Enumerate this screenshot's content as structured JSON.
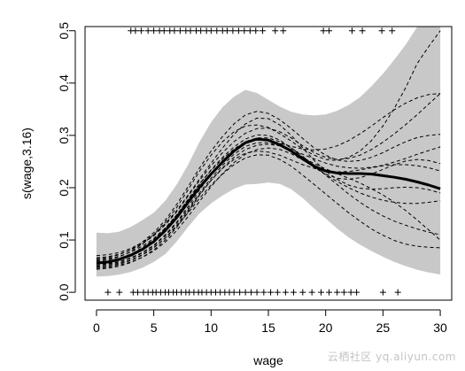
{
  "watermark": "云栖社区 yq.aliyun.com",
  "chart_data": {
    "type": "line",
    "title": "",
    "xlabel": "wage",
    "ylabel": "s(wage,3.16)",
    "xlim": [
      -1,
      31
    ],
    "ylim": [
      -0.015,
      0.508
    ],
    "xticks": [
      0,
      5,
      10,
      15,
      20,
      25,
      30
    ],
    "yticks": [
      0.0,
      0.1,
      0.2,
      0.3,
      0.4,
      0.5
    ],
    "ytick_labels": [
      "0.0",
      "0.1",
      "0.2",
      "0.3",
      "0.4",
      "0.5"
    ],
    "grid": false,
    "legend": "none",
    "colors": {
      "band": "#c8c8c8",
      "fit": "#000000",
      "samples": "#000000",
      "rug": "#000000"
    },
    "fit": {
      "x": [
        0,
        1,
        2,
        3,
        4,
        5,
        6,
        7,
        8,
        9,
        10,
        11,
        12,
        13,
        14,
        15,
        16,
        17,
        18,
        19,
        20,
        21,
        22,
        23,
        24,
        25,
        26,
        27,
        28,
        29,
        30
      ],
      "y": [
        0.056,
        0.058,
        0.063,
        0.071,
        0.082,
        0.097,
        0.118,
        0.143,
        0.172,
        0.201,
        0.226,
        0.249,
        0.27,
        0.286,
        0.293,
        0.291,
        0.282,
        0.27,
        0.255,
        0.241,
        0.232,
        0.228,
        0.227,
        0.227,
        0.226,
        0.223,
        0.22,
        0.216,
        0.211,
        0.205,
        0.198
      ]
    },
    "band": {
      "upper": [
        0.114,
        0.113,
        0.116,
        0.125,
        0.138,
        0.152,
        0.175,
        0.206,
        0.244,
        0.288,
        0.325,
        0.354,
        0.374,
        0.387,
        0.381,
        0.368,
        0.355,
        0.345,
        0.34,
        0.338,
        0.34,
        0.347,
        0.358,
        0.373,
        0.394,
        0.418,
        0.445,
        0.474,
        0.508,
        0.508,
        0.508
      ],
      "lower": [
        0.03,
        0.031,
        0.034,
        0.039,
        0.047,
        0.058,
        0.073,
        0.097,
        0.125,
        0.151,
        0.17,
        0.185,
        0.198,
        0.206,
        0.207,
        0.21,
        0.207,
        0.197,
        0.18,
        0.16,
        0.141,
        0.122,
        0.105,
        0.091,
        0.079,
        0.068,
        0.058,
        0.05,
        0.043,
        0.038,
        0.034
      ]
    },
    "sample_curves": [
      [
        0.06,
        0.062,
        0.068,
        0.078,
        0.092,
        0.11,
        0.134,
        0.162,
        0.196,
        0.232,
        0.262,
        0.288,
        0.307,
        0.318,
        0.32,
        0.315,
        0.303,
        0.289,
        0.274,
        0.262,
        0.254,
        0.252,
        0.258,
        0.27,
        0.29,
        0.318,
        0.352,
        0.392,
        0.438,
        0.47,
        0.5
      ],
      [
        0.05,
        0.052,
        0.056,
        0.062,
        0.072,
        0.086,
        0.104,
        0.126,
        0.152,
        0.18,
        0.205,
        0.226,
        0.244,
        0.257,
        0.263,
        0.262,
        0.254,
        0.241,
        0.224,
        0.206,
        0.188,
        0.17,
        0.152,
        0.136,
        0.121,
        0.109,
        0.099,
        0.092,
        0.088,
        0.086,
        0.085
      ],
      [
        0.064,
        0.066,
        0.072,
        0.082,
        0.096,
        0.114,
        0.138,
        0.168,
        0.202,
        0.238,
        0.27,
        0.298,
        0.322,
        0.339,
        0.346,
        0.342,
        0.33,
        0.313,
        0.294,
        0.276,
        0.262,
        0.253,
        0.25,
        0.252,
        0.258,
        0.267,
        0.278,
        0.288,
        0.296,
        0.3,
        0.302
      ],
      [
        0.044,
        0.046,
        0.05,
        0.057,
        0.067,
        0.081,
        0.1,
        0.124,
        0.154,
        0.186,
        0.214,
        0.237,
        0.254,
        0.266,
        0.27,
        0.268,
        0.262,
        0.253,
        0.244,
        0.237,
        0.232,
        0.23,
        0.231,
        0.234,
        0.238,
        0.242,
        0.244,
        0.244,
        0.242,
        0.238,
        0.232
      ],
      [
        0.07,
        0.072,
        0.076,
        0.084,
        0.095,
        0.11,
        0.131,
        0.156,
        0.186,
        0.217,
        0.247,
        0.276,
        0.302,
        0.322,
        0.333,
        0.332,
        0.32,
        0.3,
        0.276,
        0.252,
        0.232,
        0.216,
        0.205,
        0.199,
        0.197,
        0.198,
        0.2,
        0.201,
        0.2,
        0.196,
        0.19
      ],
      [
        0.054,
        0.055,
        0.059,
        0.066,
        0.076,
        0.09,
        0.11,
        0.134,
        0.164,
        0.196,
        0.226,
        0.252,
        0.272,
        0.286,
        0.291,
        0.29,
        0.285,
        0.279,
        0.274,
        0.272,
        0.274,
        0.28,
        0.29,
        0.303,
        0.318,
        0.334,
        0.349,
        0.362,
        0.372,
        0.378,
        0.38
      ],
      [
        0.058,
        0.06,
        0.065,
        0.073,
        0.085,
        0.101,
        0.122,
        0.148,
        0.178,
        0.208,
        0.233,
        0.255,
        0.274,
        0.288,
        0.295,
        0.295,
        0.288,
        0.276,
        0.26,
        0.242,
        0.224,
        0.206,
        0.188,
        0.172,
        0.158,
        0.146,
        0.136,
        0.128,
        0.121,
        0.115,
        0.11
      ],
      [
        0.048,
        0.05,
        0.054,
        0.061,
        0.071,
        0.085,
        0.104,
        0.128,
        0.157,
        0.187,
        0.214,
        0.238,
        0.258,
        0.273,
        0.281,
        0.283,
        0.28,
        0.273,
        0.264,
        0.255,
        0.247,
        0.241,
        0.238,
        0.237,
        0.239,
        0.243,
        0.249,
        0.256,
        0.264,
        0.271,
        0.278
      ],
      [
        0.062,
        0.064,
        0.069,
        0.077,
        0.088,
        0.103,
        0.123,
        0.148,
        0.177,
        0.207,
        0.234,
        0.258,
        0.278,
        0.293,
        0.301,
        0.3,
        0.291,
        0.276,
        0.258,
        0.24,
        0.226,
        0.218,
        0.216,
        0.219,
        0.226,
        0.235,
        0.244,
        0.251,
        0.254,
        0.252,
        0.246
      ],
      [
        0.052,
        0.054,
        0.058,
        0.065,
        0.075,
        0.089,
        0.108,
        0.132,
        0.16,
        0.19,
        0.218,
        0.243,
        0.264,
        0.279,
        0.286,
        0.286,
        0.28,
        0.27,
        0.258,
        0.246,
        0.236,
        0.227,
        0.218,
        0.209,
        0.198,
        0.186,
        0.172,
        0.156,
        0.138,
        0.119,
        0.1
      ],
      [
        0.066,
        0.068,
        0.073,
        0.081,
        0.093,
        0.108,
        0.129,
        0.154,
        0.184,
        0.214,
        0.242,
        0.267,
        0.288,
        0.304,
        0.313,
        0.314,
        0.307,
        0.295,
        0.28,
        0.267,
        0.258,
        0.254,
        0.256,
        0.262,
        0.273,
        0.287,
        0.303,
        0.321,
        0.34,
        0.36,
        0.38
      ],
      [
        0.046,
        0.048,
        0.052,
        0.058,
        0.067,
        0.079,
        0.096,
        0.118,
        0.145,
        0.174,
        0.202,
        0.227,
        0.248,
        0.264,
        0.273,
        0.276,
        0.273,
        0.265,
        0.253,
        0.239,
        0.225,
        0.212,
        0.2,
        0.19,
        0.182,
        0.176,
        0.172,
        0.17,
        0.17,
        0.172,
        0.175
      ]
    ],
    "rug_bottom": [
      1,
      2,
      3.2,
      3.6,
      4.1,
      4.5,
      4.9,
      5.2,
      5.6,
      6.0,
      6.3,
      6.7,
      7.0,
      7.4,
      7.8,
      8.1,
      8.5,
      8.9,
      9.2,
      9.6,
      10.0,
      10.4,
      10.8,
      11.2,
      11.6,
      12.0,
      12.5,
      13.0,
      13.5,
      14.0,
      14.6,
      15.2,
      15.8,
      16.5,
      17.2,
      18.0,
      18.8,
      19.6,
      20.3,
      21.0,
      21.6,
      22.2,
      22.7,
      25.0,
      26.3
    ],
    "rug_top": [
      3.0,
      3.4,
      3.9,
      4.5,
      5.0,
      5.5,
      5.9,
      6.4,
      6.8,
      7.3,
      7.8,
      8.2,
      8.7,
      9.1,
      9.6,
      10.0,
      10.5,
      11.0,
      11.4,
      11.9,
      12.4,
      12.9,
      13.4,
      13.9,
      14.5,
      15.6,
      16.3,
      19.8,
      20.3,
      22.3,
      23.2,
      24.9,
      25.8
    ]
  }
}
